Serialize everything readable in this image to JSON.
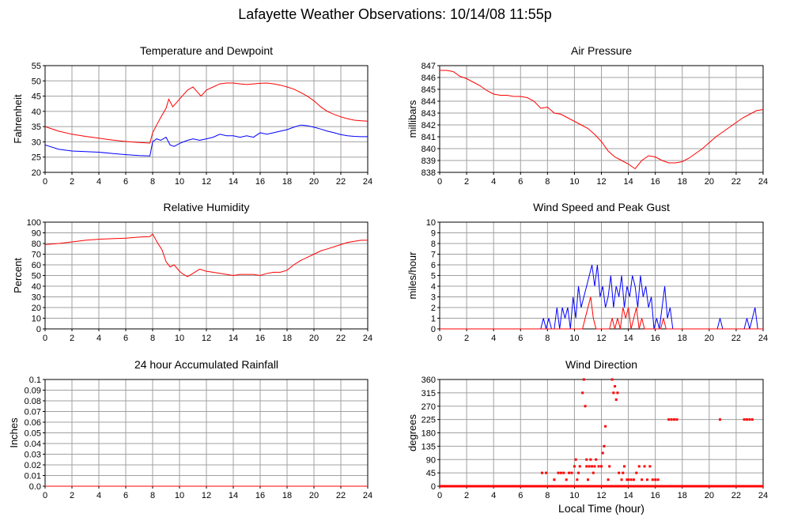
{
  "page": {
    "title": "Lafayette Weather Observations: 10/14/08 11:55p",
    "x_axis_title": "Local Time (hour)"
  },
  "chart_data": [
    {
      "id": "temp",
      "type": "line",
      "title": "Temperature and Dewpoint",
      "ylabel": "Fahrenheit",
      "xlabel": "",
      "xlim": [
        0,
        24
      ],
      "ylim": [
        20,
        55
      ],
      "xticks": [
        0,
        2,
        4,
        6,
        8,
        10,
        12,
        14,
        16,
        18,
        20,
        22,
        24
      ],
      "yticks": [
        20,
        25,
        30,
        35,
        40,
        45,
        50,
        55
      ],
      "grid": true,
      "series": [
        {
          "color": "#ff0000",
          "x": [
            0,
            1,
            2,
            3,
            4,
            5,
            6,
            7,
            7.8,
            8,
            8.3,
            8.6,
            9,
            9.2,
            9.5,
            9.8,
            10.2,
            10.6,
            11,
            11.3,
            11.6,
            12,
            12.5,
            13,
            13.5,
            14,
            14.5,
            15,
            15.5,
            16,
            16.5,
            17,
            17.5,
            18,
            18.5,
            19,
            19.5,
            20,
            20.5,
            21,
            21.5,
            22,
            22.5,
            23,
            23.5,
            24
          ],
          "values": [
            35,
            33.5,
            32.5,
            31.8,
            31.2,
            30.6,
            30.1,
            29.8,
            29.6,
            33,
            35.5,
            38,
            41,
            44,
            41.5,
            43,
            45,
            47,
            48,
            46.5,
            45,
            47,
            48,
            49,
            49.3,
            49.3,
            49,
            48.8,
            49,
            49.2,
            49.3,
            49,
            48.6,
            48,
            47.3,
            46.2,
            45,
            43.5,
            41.5,
            40,
            39,
            38.2,
            37.6,
            37.1,
            36.9,
            36.8
          ]
        },
        {
          "color": "#0000ff",
          "x": [
            0,
            1,
            2,
            3,
            4,
            5,
            6,
            7,
            7.8,
            8,
            8.3,
            8.6,
            9,
            9.3,
            9.6,
            10,
            10.3,
            10.6,
            11,
            11.5,
            12,
            12.5,
            13,
            13.5,
            14,
            14.5,
            15,
            15.5,
            16,
            16.5,
            17,
            17.5,
            18,
            18.5,
            19,
            19.5,
            20,
            20.5,
            21,
            21.5,
            22,
            22.5,
            23,
            23.5,
            24
          ],
          "values": [
            29,
            27.6,
            27,
            26.8,
            26.6,
            26.2,
            25.8,
            25.5,
            25.4,
            30,
            31,
            30.5,
            31.5,
            29,
            28.5,
            29.5,
            30,
            30.5,
            31,
            30.5,
            31,
            31.5,
            32.5,
            32,
            32,
            31.5,
            32,
            31.5,
            33,
            32.5,
            33,
            33.5,
            34,
            34.8,
            35.5,
            35.3,
            34.8,
            34.2,
            33.5,
            33,
            32.4,
            32,
            31.8,
            31.7,
            31.7
          ]
        }
      ]
    },
    {
      "id": "pressure",
      "type": "line",
      "title": "Air Pressure",
      "ylabel": "millibars",
      "xlabel": "",
      "xlim": [
        0,
        24
      ],
      "ylim": [
        838,
        847
      ],
      "xticks": [
        0,
        2,
        4,
        6,
        8,
        10,
        12,
        14,
        16,
        18,
        20,
        22,
        24
      ],
      "yticks": [
        838,
        839,
        840,
        841,
        842,
        843,
        844,
        845,
        846,
        847
      ],
      "grid": true,
      "series": [
        {
          "color": "#ff0000",
          "x": [
            0,
            0.5,
            1,
            1.5,
            2,
            2.5,
            3,
            3.5,
            4,
            4.5,
            5,
            5.5,
            6,
            6.5,
            7,
            7.5,
            8,
            8.5,
            9,
            9.5,
            10,
            10.5,
            11,
            11.5,
            12,
            12.5,
            13,
            13.5,
            14,
            14.5,
            15,
            15.5,
            16,
            16.5,
            17,
            17.5,
            18,
            18.5,
            19,
            19.5,
            20,
            20.5,
            21,
            21.5,
            22,
            22.5,
            23,
            23.5,
            24
          ],
          "values": [
            846.6,
            846.6,
            846.5,
            846.1,
            845.9,
            845.6,
            845.3,
            844.9,
            844.6,
            844.5,
            844.5,
            844.4,
            844.4,
            844.3,
            844.0,
            843.4,
            843.5,
            843.0,
            842.9,
            842.6,
            842.3,
            842.0,
            841.7,
            841.2,
            840.6,
            839.8,
            839.3,
            839.0,
            838.7,
            838.3,
            839.0,
            839.4,
            839.3,
            839.0,
            838.8,
            838.8,
            838.9,
            839.2,
            839.6,
            840.0,
            840.5,
            841.0,
            841.4,
            841.8,
            842.2,
            842.6,
            842.9,
            843.2,
            843.3
          ]
        }
      ]
    },
    {
      "id": "humidity",
      "type": "line",
      "title": "Relative Humidity",
      "ylabel": "Percent",
      "xlabel": "",
      "xlim": [
        0,
        24
      ],
      "ylim": [
        0,
        100
      ],
      "xticks": [
        0,
        2,
        4,
        6,
        8,
        10,
        12,
        14,
        16,
        18,
        20,
        22,
        24
      ],
      "yticks": [
        0,
        10,
        20,
        30,
        40,
        50,
        60,
        70,
        80,
        90,
        100
      ],
      "grid": true,
      "series": [
        {
          "color": "#ff0000",
          "x": [
            0,
            1,
            2,
            3,
            4,
            5,
            6,
            7,
            7.8,
            8,
            8.3,
            8.7,
            9,
            9.3,
            9.6,
            10,
            10.3,
            10.6,
            11,
            11.5,
            12,
            12.5,
            13,
            13.5,
            14,
            14.5,
            15,
            15.5,
            16,
            16.5,
            17,
            17.5,
            18,
            18.5,
            19,
            19.5,
            20,
            20.5,
            21,
            21.5,
            22,
            22.5,
            23,
            23.5,
            24
          ],
          "values": [
            79,
            80,
            81.5,
            83,
            84,
            84.5,
            85,
            86,
            86.5,
            89,
            82,
            74,
            63,
            58,
            60,
            54,
            51,
            49,
            52,
            56,
            54,
            53,
            52,
            51,
            50,
            51,
            51,
            51,
            50,
            52,
            53,
            53,
            55,
            60,
            64,
            67,
            70,
            73,
            75,
            77,
            79,
            81,
            82,
            83,
            83
          ]
        }
      ]
    },
    {
      "id": "wind",
      "type": "line",
      "title": "Wind Speed and Peak Gust",
      "ylabel": "miles/hour",
      "xlabel": "",
      "xlim": [
        0,
        24
      ],
      "ylim": [
        0,
        10
      ],
      "xticks": [
        0,
        2,
        4,
        6,
        8,
        10,
        12,
        14,
        16,
        18,
        20,
        22,
        24
      ],
      "yticks": [
        0,
        1,
        2,
        3,
        4,
        5,
        6,
        7,
        8,
        9,
        10
      ],
      "grid": true,
      "series": [
        {
          "color": "#0000ff",
          "x": [
            0,
            7.5,
            7.7,
            7.9,
            8.1,
            8.3,
            8.5,
            8.7,
            8.9,
            9.1,
            9.3,
            9.5,
            9.7,
            9.9,
            10.1,
            10.3,
            10.5,
            10.7,
            10.9,
            11.1,
            11.3,
            11.5,
            11.7,
            11.9,
            12.1,
            12.3,
            12.5,
            12.7,
            12.9,
            13.1,
            13.3,
            13.5,
            13.7,
            13.9,
            14.1,
            14.3,
            14.5,
            14.7,
            14.9,
            15.1,
            15.3,
            15.5,
            15.7,
            15.9,
            16.1,
            16.3,
            16.5,
            16.7,
            16.9,
            17.1,
            17.3,
            17.5,
            17.7,
            20.6,
            20.8,
            21.0,
            22.6,
            22.8,
            23.0,
            23.2,
            23.4,
            23.6,
            24
          ],
          "values": [
            0,
            0,
            1,
            0,
            1,
            0,
            0,
            2,
            0,
            2,
            1,
            2,
            0,
            3,
            1,
            4,
            2,
            3,
            4,
            5,
            6,
            4,
            6,
            3,
            4,
            2,
            3,
            5,
            2,
            4,
            3,
            5,
            2,
            4,
            3,
            5,
            4,
            2,
            5,
            3,
            4,
            2,
            3,
            0,
            1,
            0,
            2,
            4,
            1,
            2,
            0,
            0,
            0,
            0,
            1,
            0,
            0,
            1,
            0,
            1,
            2,
            0,
            0
          ]
        },
        {
          "color": "#ff0000",
          "x": [
            0,
            10.6,
            10.8,
            11.0,
            11.2,
            11.4,
            11.6,
            11.8,
            12.6,
            12.8,
            13.0,
            13.2,
            13.4,
            13.6,
            13.8,
            14.0,
            14.2,
            14.4,
            14.6,
            14.8,
            15.0,
            15.2,
            16.4,
            16.6,
            16.8,
            24
          ],
          "values": [
            0,
            0,
            1,
            2,
            3,
            1,
            0,
            0,
            0,
            1,
            0,
            1,
            0,
            2,
            1,
            2,
            0,
            1,
            2,
            0,
            1,
            0,
            0,
            1,
            0,
            0
          ]
        }
      ]
    },
    {
      "id": "rain",
      "type": "line",
      "title": "24 hour Accumulated Rainfall",
      "ylabel": "Inches",
      "xlabel": "",
      "xlim": [
        0,
        24
      ],
      "ylim": [
        0,
        0.1
      ],
      "xticks": [
        0,
        2,
        4,
        6,
        8,
        10,
        12,
        14,
        16,
        18,
        20,
        22,
        24
      ],
      "yticks": [
        0.0,
        0.01,
        0.02,
        0.03,
        0.04,
        0.05,
        0.06,
        0.07,
        0.08,
        0.09,
        0.1
      ],
      "ytick_labels": [
        "0.0",
        "0.01",
        "0.02",
        "0.03",
        "0.04",
        "0.05",
        "0.06",
        "0.07",
        "0.08",
        "0.09",
        "0.1"
      ],
      "grid": true,
      "series": [
        {
          "color": "#ff0000",
          "x": [
            0,
            24
          ],
          "values": [
            0,
            0
          ]
        }
      ]
    },
    {
      "id": "direction",
      "type": "scatter",
      "title": "Wind Direction",
      "ylabel": "degrees",
      "xlabel": "Local Time (hour)",
      "xlim": [
        0,
        24
      ],
      "ylim": [
        0,
        360
      ],
      "xticks": [
        0,
        2,
        4,
        6,
        8,
        10,
        12,
        14,
        16,
        18,
        20,
        22,
        24
      ],
      "yticks": [
        0,
        45,
        90,
        135,
        180,
        225,
        270,
        315,
        360
      ],
      "grid": true,
      "baseline": {
        "value": 0,
        "from": 0,
        "to": 24,
        "color": "#ff0000"
      },
      "series": [
        {
          "color": "#ff0000",
          "x": [
            7.6,
            7.9,
            8.5,
            8.8,
            9.0,
            9.2,
            9.4,
            9.6,
            9.8,
            10.0,
            10.1,
            10.2,
            10.3,
            10.4,
            10.6,
            10.7,
            10.8,
            10.9,
            10.9,
            11.0,
            11.1,
            11.2,
            11.3,
            11.4,
            11.5,
            11.6,
            11.8,
            12.0,
            12.1,
            12.2,
            12.3,
            12.5,
            12.6,
            12.8,
            12.9,
            13.0,
            13.1,
            13.2,
            13.3,
            13.5,
            13.6,
            13.7,
            13.9,
            14.0,
            14.2,
            14.4,
            14.6,
            14.8,
            15.0,
            15.2,
            15.4,
            15.6,
            15.8,
            16.0,
            16.2,
            17.0,
            17.2,
            17.4,
            17.6,
            20.8,
            22.6,
            22.8,
            23.0,
            23.2
          ],
          "values": [
            45,
            45,
            22,
            45,
            45,
            45,
            22,
            45,
            45,
            67,
            90,
            22,
            45,
            67,
            315,
            360,
            270,
            67,
            90,
            22,
            67,
            90,
            67,
            45,
            67,
            90,
            67,
            67,
            112,
            135,
            202,
            22,
            67,
            360,
            315,
            337,
            292,
            315,
            45,
            22,
            45,
            67,
            22,
            22,
            22,
            22,
            45,
            67,
            22,
            67,
            22,
            67,
            22,
            22,
            22,
            225,
            225,
            225,
            225,
            225,
            225,
            225,
            225,
            225
          ]
        }
      ]
    }
  ]
}
